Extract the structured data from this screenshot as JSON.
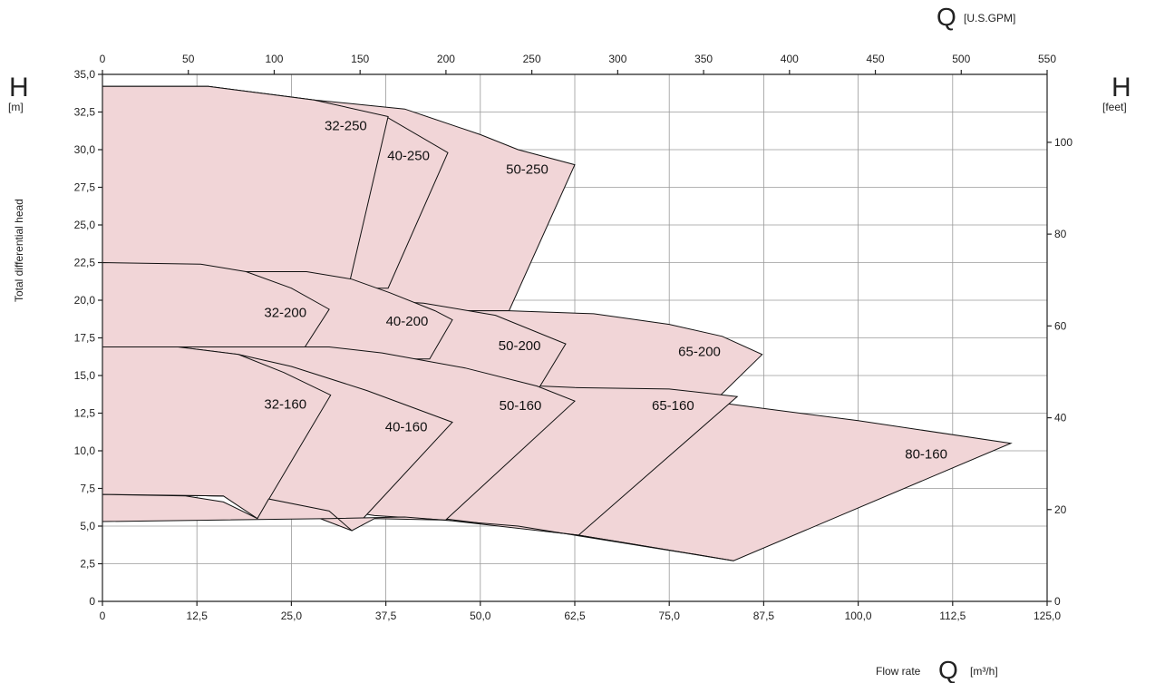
{
  "chart_data": {
    "type": "area",
    "title": "",
    "x_axis_bottom": {
      "label": "Flow rate",
      "symbol": "Q",
      "unit": "[m³/h]",
      "min": 0,
      "max": 125,
      "ticks": [
        "0",
        "12,5",
        "25,0",
        "37,5",
        "50,0",
        "62,5",
        "75,0",
        "87,5",
        "100,0",
        "112,5",
        "125,0"
      ]
    },
    "x_axis_top": {
      "symbol": "Q",
      "unit": "[U.S.GPM]",
      "min": 0,
      "max": 550,
      "ticks": [
        "0",
        "50",
        "100",
        "150",
        "200",
        "250",
        "300",
        "350",
        "400",
        "450",
        "500",
        "550"
      ]
    },
    "y_axis_left": {
      "symbol": "H",
      "unit": "[m]",
      "label": "Total differential head",
      "min": 0,
      "max": 35,
      "ticks": [
        "0",
        "2,5",
        "5,0",
        "7,5",
        "10,0",
        "12,5",
        "15,0",
        "17,5",
        "20,0",
        "22,5",
        "25,0",
        "27,5",
        "30,0",
        "32,5",
        "35,0"
      ]
    },
    "y_axis_right": {
      "symbol": "H",
      "unit": "[feet]",
      "min": 0,
      "max": 114.8,
      "ticks": [
        "0",
        "20",
        "40",
        "60",
        "80",
        "100"
      ]
    },
    "grid": true,
    "fill_color": "#f1d5d7",
    "edge_color": "#111111",
    "zones": [
      {
        "name": "80-160",
        "label_at": [
          109,
          9.5
        ],
        "points": [
          [
            0,
            16.9
          ],
          [
            10,
            16.9
          ],
          [
            30,
            16.5
          ],
          [
            50,
            15.2
          ],
          [
            62.5,
            14.2
          ],
          [
            80,
            13.3
          ],
          [
            100,
            12.0
          ],
          [
            120.2,
            10.5
          ],
          [
            83.5,
            2.7
          ],
          [
            63,
            4.4
          ],
          [
            45,
            5.5
          ],
          [
            30,
            6.0
          ],
          [
            22,
            6.8
          ],
          [
            16,
            7.0
          ],
          [
            0,
            7.1
          ]
        ]
      },
      {
        "name": "50-250",
        "label_at": [
          56.2,
          28.4
        ],
        "points": [
          [
            0,
            34.2
          ],
          [
            14,
            34.2
          ],
          [
            28,
            33.3
          ],
          [
            40,
            32.7
          ],
          [
            50,
            31.0
          ],
          [
            55,
            30.0
          ],
          [
            62.5,
            29.0
          ],
          [
            53.8,
            19.3
          ],
          [
            0,
            19.3
          ]
        ]
      },
      {
        "name": "40-250",
        "label_at": [
          40.5,
          29.3
        ],
        "points": [
          [
            0,
            34.2
          ],
          [
            14,
            34.2
          ],
          [
            28,
            33.3
          ],
          [
            37.5,
            32.2
          ],
          [
            45.7,
            29.8
          ],
          [
            37.8,
            20.8
          ],
          [
            0,
            20.8
          ]
        ]
      },
      {
        "name": "32-250",
        "label_at": [
          32.2,
          31.3
        ],
        "points": [
          [
            0,
            34.2
          ],
          [
            14,
            34.2
          ],
          [
            28,
            33.3
          ],
          [
            37.8,
            32.2
          ],
          [
            32.8,
            21.4
          ],
          [
            0,
            21.4
          ]
        ]
      },
      {
        "name": "65-200",
        "label_at": [
          79,
          16.3
        ],
        "points": [
          [
            0,
            19.3
          ],
          [
            53.8,
            19.3
          ],
          [
            65,
            19.1
          ],
          [
            75,
            18.4
          ],
          [
            82,
            17.6
          ],
          [
            87.3,
            16.4
          ],
          [
            81.6,
            13.6
          ],
          [
            0,
            13.6
          ]
        ]
      },
      {
        "name": "65-160",
        "label_at": [
          75.5,
          12.7
        ],
        "points": [
          [
            0,
            16.9
          ],
          [
            10,
            16.9
          ],
          [
            30,
            16.5
          ],
          [
            50,
            15.2
          ],
          [
            58,
            14.3
          ],
          [
            62.5,
            14.2
          ],
          [
            75,
            14.1
          ],
          [
            84,
            13.6
          ],
          [
            63,
            4.4
          ],
          [
            45,
            5.5
          ],
          [
            30,
            6.0
          ],
          [
            22,
            6.8
          ],
          [
            16,
            7.0
          ],
          [
            0,
            7.1
          ]
        ]
      },
      {
        "name": "50-200",
        "label_at": [
          55.2,
          16.7
        ],
        "points": [
          [
            0,
            20.0
          ],
          [
            36,
            20.0
          ],
          [
            42.5,
            19.8
          ],
          [
            52,
            19.0
          ],
          [
            61.3,
            17.1
          ],
          [
            57.8,
            14.2
          ],
          [
            0,
            14.2
          ]
        ]
      },
      {
        "name": "40-200",
        "label_at": [
          40.3,
          18.3
        ],
        "points": [
          [
            0,
            21.9
          ],
          [
            19,
            21.9
          ],
          [
            27,
            21.9
          ],
          [
            33,
            21.4
          ],
          [
            38,
            20.5
          ],
          [
            44,
            19.3
          ],
          [
            46.3,
            18.7
          ],
          [
            43.3,
            16.1
          ],
          [
            0,
            16.1
          ]
        ]
      },
      {
        "name": "32-200",
        "label_at": [
          24.2,
          18.9
        ],
        "points": [
          [
            0,
            22.5
          ],
          [
            13,
            22.4
          ],
          [
            19,
            21.9
          ],
          [
            25,
            20.8
          ],
          [
            30,
            19.4
          ],
          [
            26.8,
            16.9
          ],
          [
            0,
            16.9
          ]
        ]
      },
      {
        "name": "50-160",
        "label_at": [
          55.3,
          12.7
        ],
        "points": [
          [
            0,
            16.9
          ],
          [
            10,
            16.9
          ],
          [
            30,
            16.9
          ],
          [
            37,
            16.5
          ],
          [
            48,
            15.5
          ],
          [
            57.5,
            14.3
          ],
          [
            62.5,
            13.3
          ],
          [
            45.4,
            5.4
          ],
          [
            36,
            5.7
          ],
          [
            22,
            6.8
          ],
          [
            16,
            7.0
          ],
          [
            0,
            7.1
          ]
        ]
      },
      {
        "name": "40-160",
        "label_at": [
          40.2,
          11.3
        ],
        "points": [
          [
            0,
            16.9
          ],
          [
            10,
            16.9
          ],
          [
            18,
            16.4
          ],
          [
            25,
            15.6
          ],
          [
            35,
            14.0
          ],
          [
            46.3,
            11.9
          ],
          [
            33,
            4.7
          ],
          [
            22,
            6.8
          ],
          [
            16,
            7.0
          ],
          [
            0,
            7.1
          ]
        ]
      },
      {
        "name": "32-160",
        "label_at": [
          24.2,
          12.8
        ],
        "points": [
          [
            0,
            16.9
          ],
          [
            10,
            16.9
          ],
          [
            18,
            16.4
          ],
          [
            24,
            15.2
          ],
          [
            30.2,
            13.7
          ],
          [
            20.5,
            5.5
          ],
          [
            16,
            7.0
          ],
          [
            0,
            7.1
          ]
        ]
      },
      {
        "name": "bottom-band",
        "points": [
          [
            0,
            7.1
          ],
          [
            11,
            7.0
          ],
          [
            16,
            6.6
          ],
          [
            20.5,
            5.5
          ],
          [
            22,
            6.8
          ],
          [
            30,
            6.0
          ],
          [
            33,
            4.7
          ],
          [
            36,
            5.5
          ],
          [
            45.4,
            5.4
          ],
          [
            63,
            4.4
          ],
          [
            83.5,
            2.7
          ],
          [
            55,
            5.0
          ],
          [
            40,
            5.6
          ],
          [
            30,
            5.5
          ],
          [
            15,
            5.4
          ],
          [
            0,
            5.3
          ]
        ]
      }
    ]
  }
}
